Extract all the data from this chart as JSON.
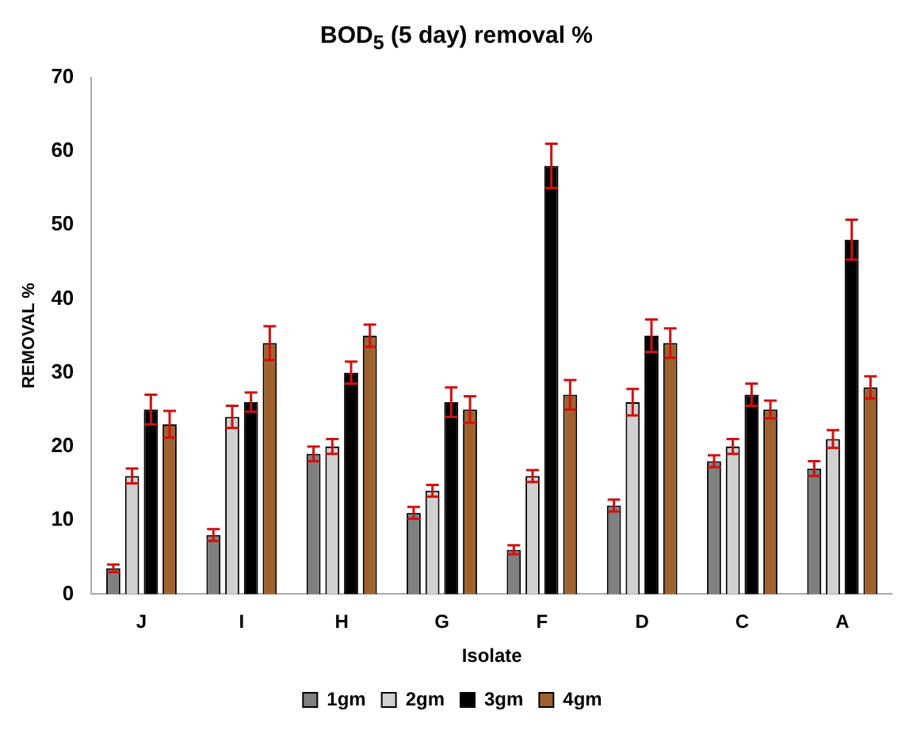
{
  "chart_data": {
    "type": "bar",
    "title": "BOD$_{5}$  (5 day) removal %",
    "xlabel": "Isolate",
    "ylabel": "REMOVAL %",
    "categories": [
      "J",
      "I",
      "H",
      "G",
      "F",
      "D",
      "C",
      "A"
    ],
    "series": [
      {
        "name": "1gm",
        "color": "#808080",
        "values": [
          3.5,
          8,
          19,
          11,
          6,
          12,
          18,
          17
        ],
        "errors": [
          0.5,
          0.8,
          1,
          0.8,
          0.6,
          0.8,
          0.8,
          1
        ]
      },
      {
        "name": "2gm",
        "color": "#d0d0d0",
        "values": [
          16,
          24,
          20,
          14,
          16,
          26,
          20,
          21
        ],
        "errors": [
          1,
          1.5,
          1,
          0.8,
          0.8,
          1.8,
          1,
          1.2
        ]
      },
      {
        "name": "3gm",
        "color": "#000000",
        "values": [
          25,
          26,
          30,
          26,
          58,
          35,
          27,
          48
        ],
        "errors": [
          2,
          1.3,
          1.5,
          2,
          3,
          2.2,
          1.5,
          2.7
        ]
      },
      {
        "name": "4gm",
        "color": "#a0622d",
        "values": [
          23,
          34,
          35,
          25,
          27,
          34,
          25,
          28
        ],
        "errors": [
          1.8,
          2.3,
          1.5,
          1.8,
          2,
          2,
          1.2,
          1.5
        ]
      }
    ],
    "ylim": [
      0,
      70
    ],
    "yticks": [
      0,
      10,
      20,
      30,
      40,
      50,
      60,
      70
    ],
    "grid": false,
    "legend": "bottom"
  }
}
